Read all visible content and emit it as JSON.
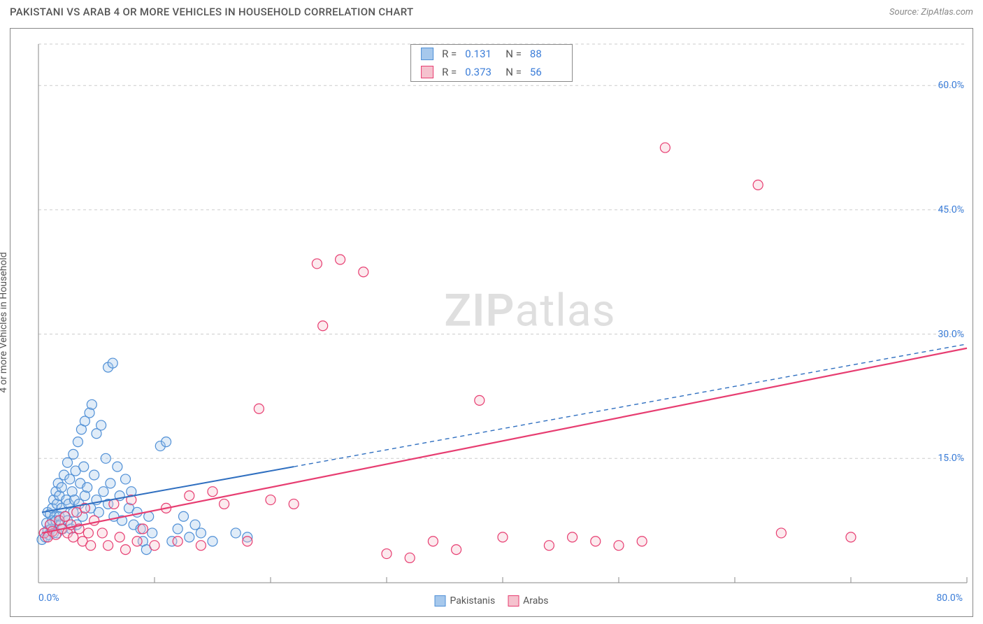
{
  "header": {
    "title": "PAKISTANI VS ARAB 4 OR MORE VEHICLES IN HOUSEHOLD CORRELATION CHART",
    "source": "Source: ZipAtlas.com"
  },
  "watermark": {
    "prefix": "ZIP",
    "suffix": "atlas"
  },
  "chart": {
    "type": "scatter",
    "background_color": "#ffffff",
    "grid_color": "#cccccc",
    "axis_color": "#888888",
    "label_color": "#3b7dd8",
    "text_color": "#555555",
    "y_axis_title": "4 or more Vehicles in Household",
    "xlim": [
      0,
      80
    ],
    "ylim": [
      0,
      65
    ],
    "y_ticks": [
      15,
      30,
      45,
      60
    ],
    "y_tick_labels": [
      "15.0%",
      "30.0%",
      "45.0%",
      "60.0%"
    ],
    "x_ticks": [
      10,
      20,
      30,
      40,
      50,
      60,
      70,
      80
    ],
    "x_min_label": "0.0%",
    "x_max_label": "80.0%",
    "marker_radius": 7,
    "marker_stroke_width": 1.2,
    "marker_fill_opacity": 0.35,
    "title_fontsize": 15,
    "label_fontsize": 14,
    "series": [
      {
        "name": "Pakistanis",
        "fill_color": "#a6c8ec",
        "stroke_color": "#4f8fd6",
        "r_value": "0.131",
        "n_value": "88",
        "trend": {
          "solid": {
            "x1": 0.3,
            "y1": 8.5,
            "x2": 22,
            "y2": 14.0
          },
          "dashed": {
            "x1": 22,
            "y1": 14.0,
            "x2": 80,
            "y2": 28.8
          },
          "color": "#2f6fc0",
          "width": 2
        },
        "points": [
          [
            0.3,
            5.2
          ],
          [
            0.5,
            6.0
          ],
          [
            0.6,
            5.5
          ],
          [
            0.7,
            7.2
          ],
          [
            0.8,
            6.3
          ],
          [
            0.8,
            8.5
          ],
          [
            0.9,
            5.8
          ],
          [
            1.0,
            7.0
          ],
          [
            1.0,
            8.3
          ],
          [
            1.1,
            6.5
          ],
          [
            1.2,
            9.0
          ],
          [
            1.2,
            7.5
          ],
          [
            1.3,
            10.0
          ],
          [
            1.3,
            6.0
          ],
          [
            1.4,
            8.0
          ],
          [
            1.5,
            11.0
          ],
          [
            1.5,
            7.5
          ],
          [
            1.6,
            9.5
          ],
          [
            1.6,
            6.0
          ],
          [
            1.7,
            12.0
          ],
          [
            1.8,
            8.0
          ],
          [
            1.8,
            10.5
          ],
          [
            1.9,
            7.0
          ],
          [
            2.0,
            9.0
          ],
          [
            2.0,
            11.5
          ],
          [
            2.1,
            6.5
          ],
          [
            2.2,
            13.0
          ],
          [
            2.3,
            8.0
          ],
          [
            2.4,
            10.0
          ],
          [
            2.5,
            14.5
          ],
          [
            2.5,
            7.5
          ],
          [
            2.6,
            9.5
          ],
          [
            2.7,
            12.5
          ],
          [
            2.8,
            6.5
          ],
          [
            2.9,
            11.0
          ],
          [
            3.0,
            15.5
          ],
          [
            3.0,
            8.5
          ],
          [
            3.1,
            10.0
          ],
          [
            3.2,
            13.5
          ],
          [
            3.3,
            7.0
          ],
          [
            3.4,
            17.0
          ],
          [
            3.5,
            9.5
          ],
          [
            3.6,
            12.0
          ],
          [
            3.7,
            18.5
          ],
          [
            3.8,
            8.0
          ],
          [
            3.9,
            14.0
          ],
          [
            4.0,
            19.5
          ],
          [
            4.0,
            10.5
          ],
          [
            4.2,
            11.5
          ],
          [
            4.4,
            20.5
          ],
          [
            4.5,
            9.0
          ],
          [
            4.6,
            21.5
          ],
          [
            4.8,
            13.0
          ],
          [
            5.0,
            18.0
          ],
          [
            5.0,
            10.0
          ],
          [
            5.2,
            8.5
          ],
          [
            5.4,
            19.0
          ],
          [
            5.6,
            11.0
          ],
          [
            5.8,
            15.0
          ],
          [
            6.0,
            9.5
          ],
          [
            6.0,
            26.0
          ],
          [
            6.2,
            12.0
          ],
          [
            6.4,
            26.5
          ],
          [
            6.5,
            8.0
          ],
          [
            6.8,
            14.0
          ],
          [
            7.0,
            10.5
          ],
          [
            7.2,
            7.5
          ],
          [
            7.5,
            12.5
          ],
          [
            7.8,
            9.0
          ],
          [
            8.0,
            11.0
          ],
          [
            8.2,
            7.0
          ],
          [
            8.5,
            8.5
          ],
          [
            8.8,
            6.5
          ],
          [
            9.0,
            5.0
          ],
          [
            9.3,
            4.0
          ],
          [
            9.5,
            8.0
          ],
          [
            9.8,
            6.0
          ],
          [
            10.5,
            16.5
          ],
          [
            11.0,
            17.0
          ],
          [
            11.5,
            5.0
          ],
          [
            12.0,
            6.5
          ],
          [
            12.5,
            8.0
          ],
          [
            13.0,
            5.5
          ],
          [
            13.5,
            7.0
          ],
          [
            14.0,
            6.0
          ],
          [
            15.0,
            5.0
          ],
          [
            17.0,
            6.0
          ],
          [
            18.0,
            5.5
          ]
        ]
      },
      {
        "name": "Arabs",
        "fill_color": "#f5c2ce",
        "stroke_color": "#e73d71",
        "r_value": "0.373",
        "n_value": "56",
        "trend": {
          "solid": {
            "x1": 0.3,
            "y1": 6.0,
            "x2": 80,
            "y2": 28.3
          },
          "dashed": null,
          "color": "#e73d71",
          "width": 2.2
        },
        "points": [
          [
            0.5,
            6.0
          ],
          [
            0.8,
            5.5
          ],
          [
            1.0,
            7.0
          ],
          [
            1.2,
            6.2
          ],
          [
            1.5,
            5.8
          ],
          [
            1.8,
            7.5
          ],
          [
            2.0,
            6.5
          ],
          [
            2.3,
            8.0
          ],
          [
            2.5,
            6.0
          ],
          [
            2.8,
            7.0
          ],
          [
            3.0,
            5.5
          ],
          [
            3.3,
            8.5
          ],
          [
            3.5,
            6.5
          ],
          [
            3.8,
            5.0
          ],
          [
            4.0,
            9.0
          ],
          [
            4.3,
            6.0
          ],
          [
            4.5,
            4.5
          ],
          [
            4.8,
            7.5
          ],
          [
            5.5,
            6.0
          ],
          [
            6.0,
            4.5
          ],
          [
            6.5,
            9.5
          ],
          [
            7.0,
            5.5
          ],
          [
            7.5,
            4.0
          ],
          [
            8.0,
            10.0
          ],
          [
            8.5,
            5.0
          ],
          [
            9.0,
            6.5
          ],
          [
            10.0,
            4.5
          ],
          [
            11.0,
            9.0
          ],
          [
            12.0,
            5.0
          ],
          [
            13.0,
            10.5
          ],
          [
            14.0,
            4.5
          ],
          [
            15.0,
            11.0
          ],
          [
            16.0,
            9.5
          ],
          [
            18.0,
            5.0
          ],
          [
            19.0,
            21.0
          ],
          [
            20.0,
            10.0
          ],
          [
            22.0,
            9.5
          ],
          [
            24.0,
            38.5
          ],
          [
            24.5,
            31.0
          ],
          [
            26.0,
            39.0
          ],
          [
            28.0,
            37.5
          ],
          [
            30.0,
            3.5
          ],
          [
            32.0,
            3.0
          ],
          [
            34.0,
            5.0
          ],
          [
            36.0,
            4.0
          ],
          [
            38.0,
            22.0
          ],
          [
            40.0,
            5.5
          ],
          [
            44.0,
            4.5
          ],
          [
            46.0,
            5.5
          ],
          [
            48.0,
            5.0
          ],
          [
            52.0,
            5.0
          ],
          [
            54.0,
            52.5
          ],
          [
            62.0,
            48.0
          ],
          [
            64.0,
            6.0
          ],
          [
            70.0,
            5.5
          ],
          [
            50.0,
            4.5
          ]
        ]
      }
    ],
    "legend_bottom": [
      {
        "label": "Pakistanis",
        "fill": "#a6c8ec",
        "stroke": "#4f8fd6"
      },
      {
        "label": "Arabs",
        "fill": "#f5c2ce",
        "stroke": "#e73d71"
      }
    ]
  }
}
